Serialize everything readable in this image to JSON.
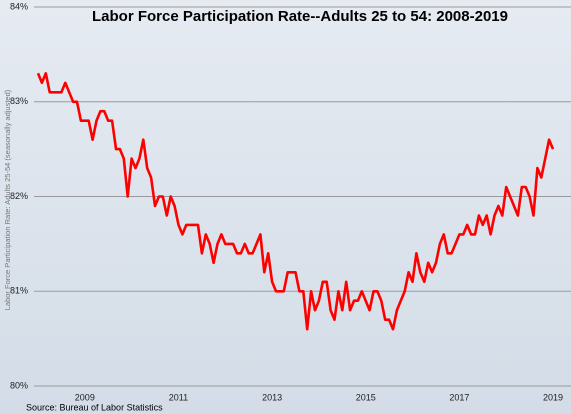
{
  "chart_data": {
    "type": "line",
    "title": "Labor Force Participation Rate--Adults 25 to 54:  2008-2019",
    "y_label": "Labor Force Participation Rate: Adults 25-54 (seasonally adjusted)",
    "source": "Source: Bureau of Labor Statistics",
    "categories": [
      null,
      null,
      null,
      null,
      null,
      null,
      null,
      null,
      null,
      null,
      null,
      null,
      "2009",
      null,
      null,
      null,
      null,
      null,
      null,
      null,
      null,
      null,
      null,
      null,
      null,
      null,
      null,
      null,
      null,
      null,
      null,
      null,
      null,
      null,
      null,
      null,
      "2011",
      null,
      null,
      null,
      null,
      null,
      null,
      null,
      null,
      null,
      null,
      null,
      null,
      null,
      null,
      null,
      null,
      null,
      null,
      null,
      null,
      null,
      null,
      null,
      "2013",
      null,
      null,
      null,
      null,
      null,
      null,
      null,
      null,
      null,
      null,
      null,
      null,
      null,
      null,
      null,
      null,
      null,
      null,
      null,
      null,
      null,
      null,
      null,
      "2015",
      null,
      null,
      null,
      null,
      null,
      null,
      null,
      null,
      null,
      null,
      null,
      null,
      null,
      null,
      null,
      null,
      null,
      null,
      null,
      null,
      null,
      null,
      null,
      "2017",
      null,
      null,
      null,
      null,
      null,
      null,
      null,
      null,
      null,
      null,
      null,
      null,
      null,
      null,
      null,
      null,
      null,
      null,
      null,
      null,
      null,
      null,
      null,
      "2019"
    ],
    "values": [
      83.3,
      83.2,
      83.3,
      83.1,
      83.1,
      83.1,
      83.1,
      83.2,
      83.1,
      83.0,
      83.0,
      82.8,
      82.8,
      82.8,
      82.6,
      82.8,
      82.9,
      82.9,
      82.8,
      82.8,
      82.5,
      82.5,
      82.4,
      82.0,
      82.4,
      82.3,
      82.4,
      82.6,
      82.3,
      82.2,
      81.9,
      82.0,
      82.0,
      81.8,
      82.0,
      81.9,
      81.7,
      81.6,
      81.7,
      81.7,
      81.7,
      81.7,
      81.4,
      81.6,
      81.5,
      81.3,
      81.5,
      81.6,
      81.5,
      81.5,
      81.5,
      81.4,
      81.4,
      81.5,
      81.4,
      81.4,
      81.5,
      81.6,
      81.2,
      81.4,
      81.1,
      81.0,
      81.0,
      81.0,
      81.2,
      81.2,
      81.2,
      81.0,
      81.0,
      80.6,
      81.0,
      80.8,
      80.9,
      81.1,
      81.1,
      80.8,
      80.7,
      81.0,
      80.8,
      81.1,
      80.8,
      80.9,
      80.9,
      81.0,
      80.9,
      80.8,
      81.0,
      81.0,
      80.9,
      80.7,
      80.7,
      80.6,
      80.8,
      80.9,
      81.0,
      81.2,
      81.1,
      81.4,
      81.2,
      81.1,
      81.3,
      81.2,
      81.3,
      81.5,
      81.6,
      81.4,
      81.4,
      81.5,
      81.6,
      81.6,
      81.7,
      81.6,
      81.6,
      81.8,
      81.7,
      81.8,
      81.6,
      81.8,
      81.9,
      81.8,
      82.1,
      82.0,
      81.9,
      81.8,
      82.1,
      82.1,
      82.0,
      81.8,
      82.3,
      82.2,
      82.4,
      82.6,
      82.5
    ],
    "color": "#ff0000",
    "ylim": [
      80,
      84
    ],
    "yticks": [
      {
        "value": 80,
        "label": "80%"
      },
      {
        "value": 81,
        "label": "81%"
      },
      {
        "value": 82,
        "label": "82%"
      },
      {
        "value": 83,
        "label": "83%"
      },
      {
        "value": 84,
        "label": "84%"
      }
    ],
    "grid": true
  }
}
